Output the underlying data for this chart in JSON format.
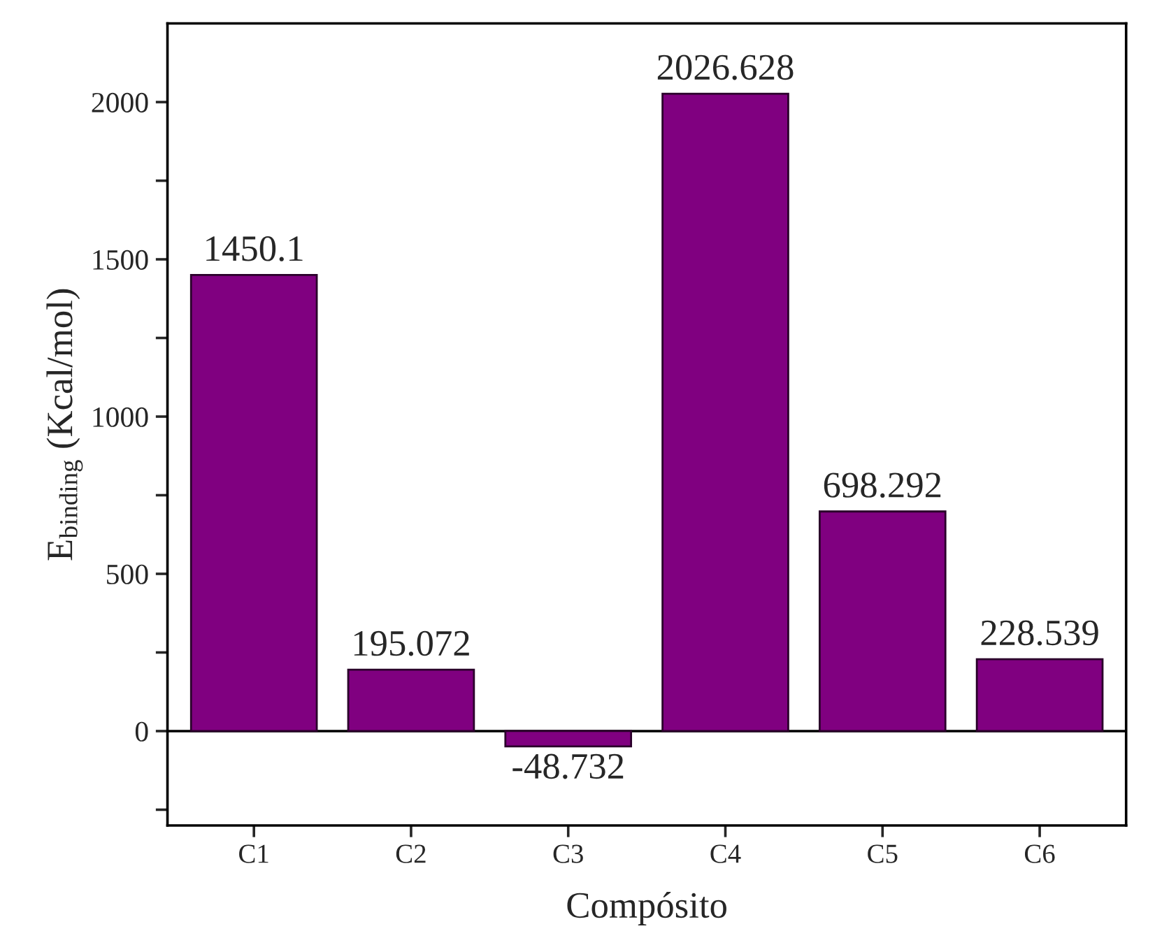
{
  "chart_data": {
    "type": "bar",
    "xlabel": "Compósito",
    "ylabel": "E$_{binding}$ (Kcal/mol)",
    "categories": [
      "C1",
      "C2",
      "C3",
      "C4",
      "C5",
      "C6"
    ],
    "values": [
      1450.1,
      195.072,
      -48.732,
      2026.628,
      698.292,
      228.539
    ],
    "color": "#800080",
    "data_labels": true,
    "ylim": [
      -300,
      2250
    ],
    "yticks": [
      0,
      {
        "value": 250,
        "label": null
      },
      500,
      {
        "value": 750,
        "label": null
      },
      1000,
      {
        "value": 1250,
        "label": null
      },
      1500,
      {
        "value": 1750,
        "label": null
      },
      2000,
      {
        "value": -250,
        "label": null
      }
    ],
    "ref_lines": [
      {
        "axis": "y",
        "value": 0,
        "color": "#000000"
      }
    ],
    "grid": false
  }
}
